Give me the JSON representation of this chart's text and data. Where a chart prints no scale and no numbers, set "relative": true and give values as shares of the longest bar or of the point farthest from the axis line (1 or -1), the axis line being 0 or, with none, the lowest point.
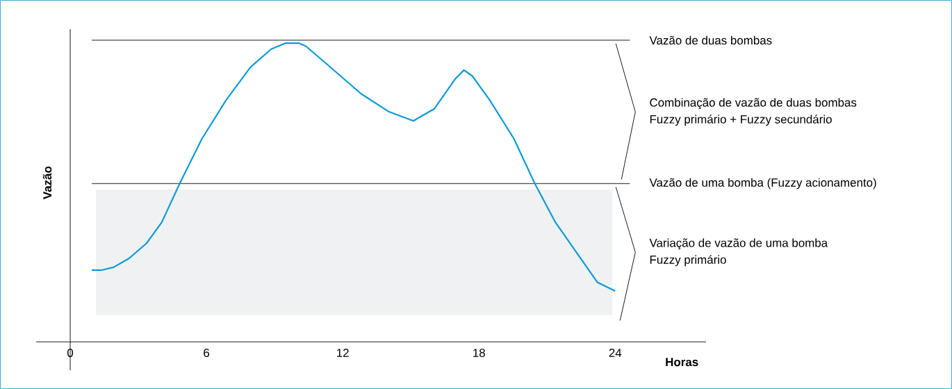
{
  "chart_data": {
    "type": "line",
    "xlabel": "Horas",
    "ylabel": "Vazão",
    "relative": true,
    "x": [
      0.95,
      1.37,
      1.92,
      2.6,
      3.36,
      4.03,
      4.82,
      5.8,
      6.87,
      7.94,
      8.85,
      9.47,
      10.08,
      10.38,
      11.3,
      12.82,
      14.05,
      15.11,
      16.03,
      16.95,
      17.34,
      17.71,
      18.47,
      19.54,
      20.46,
      21.37,
      22.29,
      23.21,
      24.0
    ],
    "series": [
      {
        "color": "#0a9bd5",
        "values": [
          0.24,
          0.24,
          0.25,
          0.28,
          0.33,
          0.4,
          0.53,
          0.68,
          0.81,
          0.92,
          0.98,
          1.0,
          1.0,
          0.99,
          0.93,
          0.83,
          0.77,
          0.74,
          0.78,
          0.88,
          0.91,
          0.89,
          0.81,
          0.68,
          0.53,
          0.4,
          0.3,
          0.2,
          0.17
        ]
      }
    ],
    "xlim": [
      -1.5,
      28
    ],
    "xticks": [
      0,
      6,
      12,
      18,
      24
    ],
    "ref_lines": [
      {
        "axis": "y",
        "value": 1.01,
        "label": "Vazão de duas bombas"
      },
      {
        "axis": "y",
        "value": 0.53,
        "label": "Vazão de uma bomba (Fuzzy acionamento)"
      }
    ],
    "bands": [
      {
        "axis": "y",
        "from": 0.09,
        "to": 0.51,
        "color": "#f0f1f2"
      }
    ],
    "annotations": [
      "Combinação de vazão de duas bombas",
      "Fuzzy primário + Fuzzy secundário",
      "Variação de vazão de uma bomba",
      "Fuzzy primário"
    ]
  }
}
